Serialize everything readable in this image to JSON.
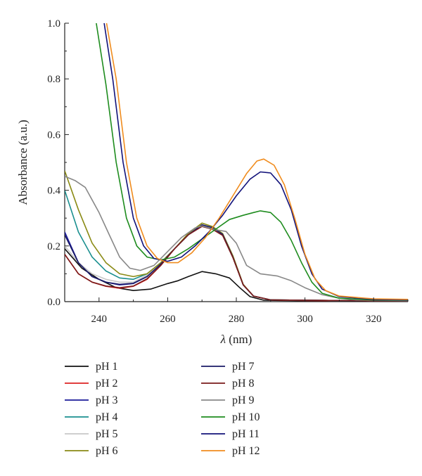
{
  "chart_data": {
    "type": "line",
    "title": "",
    "xlabel_symbol": "λ",
    "xlabel_unit": " (nm)",
    "ylabel": "Absorbance (a.u.)",
    "xlim": [
      230,
      330
    ],
    "ylim": [
      0,
      1.0
    ],
    "x_ticks": [
      240,
      260,
      280,
      300,
      320
    ],
    "x_tick_labels": [
      "240",
      "260",
      "280",
      "300",
      "320"
    ],
    "y_ticks": [
      0,
      0.2,
      0.4,
      0.6,
      0.8,
      1.0
    ],
    "y_tick_labels": [
      "0.0",
      "0.2",
      "0.4",
      "0.6",
      "0.8",
      "1.0"
    ],
    "legend_position": "bottom",
    "series": [
      {
        "name": "pH 1",
        "color": "#111111",
        "points": [
          [
            230,
            0.19
          ],
          [
            235,
            0.12
          ],
          [
            240,
            0.08
          ],
          [
            245,
            0.05
          ],
          [
            250,
            0.04
          ],
          [
            255,
            0.045
          ],
          [
            260,
            0.065
          ],
          [
            263,
            0.075
          ],
          [
            266,
            0.09
          ],
          [
            270,
            0.108
          ],
          [
            274,
            0.1
          ],
          [
            278,
            0.085
          ],
          [
            281,
            0.05
          ],
          [
            284,
            0.018
          ],
          [
            288,
            0.005
          ],
          [
            300,
            0.003
          ],
          [
            320,
            0.002
          ],
          [
            330,
            0.002
          ]
        ]
      },
      {
        "name": "pH 2",
        "color": "#dd2222",
        "points": [
          [
            230,
            0.17
          ],
          [
            234,
            0.1
          ],
          [
            238,
            0.07
          ],
          [
            242,
            0.055
          ],
          [
            246,
            0.048
          ],
          [
            250,
            0.055
          ],
          [
            254,
            0.08
          ],
          [
            258,
            0.13
          ],
          [
            262,
            0.19
          ],
          [
            266,
            0.24
          ],
          [
            270,
            0.272
          ],
          [
            273,
            0.262
          ],
          [
            276,
            0.24
          ],
          [
            279,
            0.16
          ],
          [
            282,
            0.06
          ],
          [
            285,
            0.02
          ],
          [
            290,
            0.006
          ],
          [
            300,
            0.004
          ],
          [
            320,
            0.003
          ],
          [
            330,
            0.003
          ]
        ]
      },
      {
        "name": "pH 3",
        "color": "#1a1a99",
        "points": [
          [
            230,
            0.25
          ],
          [
            234,
            0.14
          ],
          [
            238,
            0.09
          ],
          [
            242,
            0.07
          ],
          [
            246,
            0.06
          ],
          [
            250,
            0.065
          ],
          [
            254,
            0.09
          ],
          [
            258,
            0.135
          ],
          [
            262,
            0.19
          ],
          [
            266,
            0.24
          ],
          [
            270,
            0.274
          ],
          [
            273,
            0.264
          ],
          [
            276,
            0.24
          ],
          [
            279,
            0.16
          ],
          [
            282,
            0.06
          ],
          [
            285,
            0.02
          ],
          [
            290,
            0.006
          ],
          [
            320,
            0.003
          ],
          [
            330,
            0.003
          ]
        ]
      },
      {
        "name": "pH 4",
        "color": "#1a8f8f",
        "points": [
          [
            230,
            0.4
          ],
          [
            234,
            0.25
          ],
          [
            238,
            0.16
          ],
          [
            242,
            0.11
          ],
          [
            246,
            0.085
          ],
          [
            250,
            0.08
          ],
          [
            254,
            0.1
          ],
          [
            258,
            0.14
          ],
          [
            262,
            0.19
          ],
          [
            266,
            0.24
          ],
          [
            270,
            0.275
          ],
          [
            273,
            0.265
          ],
          [
            276,
            0.24
          ],
          [
            279,
            0.16
          ],
          [
            282,
            0.06
          ],
          [
            285,
            0.02
          ],
          [
            290,
            0.006
          ],
          [
            320,
            0.003
          ],
          [
            330,
            0.003
          ]
        ]
      },
      {
        "name": "pH 5",
        "color": "#c8c8c8",
        "points": [
          [
            230,
            0.2
          ],
          [
            234,
            0.14
          ],
          [
            238,
            0.1
          ],
          [
            242,
            0.08
          ],
          [
            246,
            0.07
          ],
          [
            250,
            0.07
          ],
          [
            254,
            0.095
          ],
          [
            258,
            0.135
          ],
          [
            262,
            0.19
          ],
          [
            266,
            0.24
          ],
          [
            270,
            0.274
          ],
          [
            273,
            0.264
          ],
          [
            276,
            0.24
          ],
          [
            279,
            0.16
          ],
          [
            282,
            0.06
          ],
          [
            285,
            0.02
          ],
          [
            290,
            0.006
          ],
          [
            320,
            0.003
          ],
          [
            330,
            0.003
          ]
        ]
      },
      {
        "name": "pH 6",
        "color": "#8a8a14",
        "points": [
          [
            230,
            0.47
          ],
          [
            234,
            0.33
          ],
          [
            238,
            0.21
          ],
          [
            242,
            0.14
          ],
          [
            246,
            0.1
          ],
          [
            250,
            0.09
          ],
          [
            254,
            0.1
          ],
          [
            258,
            0.14
          ],
          [
            262,
            0.19
          ],
          [
            266,
            0.245
          ],
          [
            270,
            0.282
          ],
          [
            273,
            0.27
          ],
          [
            276,
            0.245
          ],
          [
            279,
            0.165
          ],
          [
            282,
            0.062
          ],
          [
            285,
            0.02
          ],
          [
            290,
            0.006
          ],
          [
            320,
            0.003
          ],
          [
            330,
            0.003
          ]
        ]
      },
      {
        "name": "pH 7",
        "color": "#1a1a66",
        "points": [
          [
            230,
            0.24
          ],
          [
            234,
            0.14
          ],
          [
            238,
            0.09
          ],
          [
            242,
            0.07
          ],
          [
            246,
            0.062
          ],
          [
            250,
            0.066
          ],
          [
            254,
            0.09
          ],
          [
            258,
            0.135
          ],
          [
            262,
            0.19
          ],
          [
            266,
            0.24
          ],
          [
            270,
            0.276
          ],
          [
            273,
            0.266
          ],
          [
            276,
            0.242
          ],
          [
            279,
            0.16
          ],
          [
            282,
            0.06
          ],
          [
            285,
            0.02
          ],
          [
            290,
            0.006
          ],
          [
            320,
            0.003
          ],
          [
            330,
            0.003
          ]
        ]
      },
      {
        "name": "pH 8",
        "color": "#7a1a1a",
        "points": [
          [
            230,
            0.17
          ],
          [
            234,
            0.1
          ],
          [
            238,
            0.07
          ],
          [
            242,
            0.056
          ],
          [
            246,
            0.05
          ],
          [
            250,
            0.056
          ],
          [
            254,
            0.082
          ],
          [
            258,
            0.13
          ],
          [
            262,
            0.19
          ],
          [
            266,
            0.24
          ],
          [
            270,
            0.27
          ],
          [
            273,
            0.26
          ],
          [
            276,
            0.238
          ],
          [
            279,
            0.158
          ],
          [
            282,
            0.06
          ],
          [
            285,
            0.02
          ],
          [
            290,
            0.006
          ],
          [
            320,
            0.003
          ],
          [
            330,
            0.003
          ]
        ]
      },
      {
        "name": "pH 9",
        "color": "#888888",
        "points": [
          [
            230,
            0.45
          ],
          [
            233,
            0.435
          ],
          [
            236,
            0.41
          ],
          [
            240,
            0.32
          ],
          [
            243,
            0.24
          ],
          [
            246,
            0.16
          ],
          [
            249,
            0.12
          ],
          [
            252,
            0.112
          ],
          [
            256,
            0.13
          ],
          [
            260,
            0.18
          ],
          [
            264,
            0.23
          ],
          [
            268,
            0.265
          ],
          [
            270,
            0.272
          ],
          [
            274,
            0.258
          ],
          [
            277,
            0.252
          ],
          [
            280,
            0.21
          ],
          [
            283,
            0.13
          ],
          [
            287,
            0.1
          ],
          [
            292,
            0.092
          ],
          [
            296,
            0.075
          ],
          [
            300,
            0.05
          ],
          [
            305,
            0.025
          ],
          [
            310,
            0.012
          ],
          [
            315,
            0.006
          ],
          [
            330,
            0.004
          ]
        ]
      },
      {
        "name": "pH 10",
        "color": "#1e8c1e",
        "points": [
          [
            231,
            2.0
          ],
          [
            239.2,
            1.0
          ],
          [
            242,
            0.78
          ],
          [
            245,
            0.5
          ],
          [
            248,
            0.3
          ],
          [
            251,
            0.2
          ],
          [
            254,
            0.16
          ],
          [
            258,
            0.15
          ],
          [
            262,
            0.16
          ],
          [
            266,
            0.19
          ],
          [
            270,
            0.225
          ],
          [
            274,
            0.26
          ],
          [
            278,
            0.295
          ],
          [
            282,
            0.31
          ],
          [
            285,
            0.32
          ],
          [
            287,
            0.326
          ],
          [
            290,
            0.32
          ],
          [
            293,
            0.285
          ],
          [
            296,
            0.22
          ],
          [
            299,
            0.14
          ],
          [
            302,
            0.07
          ],
          [
            305,
            0.03
          ],
          [
            310,
            0.012
          ],
          [
            320,
            0.006
          ],
          [
            330,
            0.005
          ]
        ]
      },
      {
        "name": "pH 11",
        "color": "#12127a",
        "points": [
          [
            233,
            2.0
          ],
          [
            241.5,
            1.0
          ],
          [
            244,
            0.8
          ],
          [
            247,
            0.5
          ],
          [
            250,
            0.3
          ],
          [
            253,
            0.2
          ],
          [
            256,
            0.155
          ],
          [
            260,
            0.145
          ],
          [
            264,
            0.16
          ],
          [
            268,
            0.2
          ],
          [
            272,
            0.25
          ],
          [
            276,
            0.31
          ],
          [
            280,
            0.38
          ],
          [
            284,
            0.44
          ],
          [
            287,
            0.466
          ],
          [
            290,
            0.462
          ],
          [
            293,
            0.42
          ],
          [
            296,
            0.33
          ],
          [
            299,
            0.2
          ],
          [
            302,
            0.1
          ],
          [
            305,
            0.045
          ],
          [
            310,
            0.018
          ],
          [
            320,
            0.008
          ],
          [
            330,
            0.006
          ]
        ]
      },
      {
        "name": "pH 12",
        "color": "#f08c1e",
        "points": [
          [
            233.5,
            2.0
          ],
          [
            242.2,
            1.0
          ],
          [
            245,
            0.8
          ],
          [
            248,
            0.5
          ],
          [
            251,
            0.3
          ],
          [
            254,
            0.2
          ],
          [
            257,
            0.155
          ],
          [
            260,
            0.14
          ],
          [
            263,
            0.14
          ],
          [
            267,
            0.175
          ],
          [
            271,
            0.23
          ],
          [
            275,
            0.3
          ],
          [
            279,
            0.38
          ],
          [
            283,
            0.46
          ],
          [
            286,
            0.505
          ],
          [
            288,
            0.512
          ],
          [
            291,
            0.49
          ],
          [
            294,
            0.42
          ],
          [
            297,
            0.3
          ],
          [
            300,
            0.17
          ],
          [
            303,
            0.08
          ],
          [
            306,
            0.04
          ],
          [
            310,
            0.02
          ],
          [
            320,
            0.01
          ],
          [
            330,
            0.008
          ]
        ]
      }
    ]
  }
}
